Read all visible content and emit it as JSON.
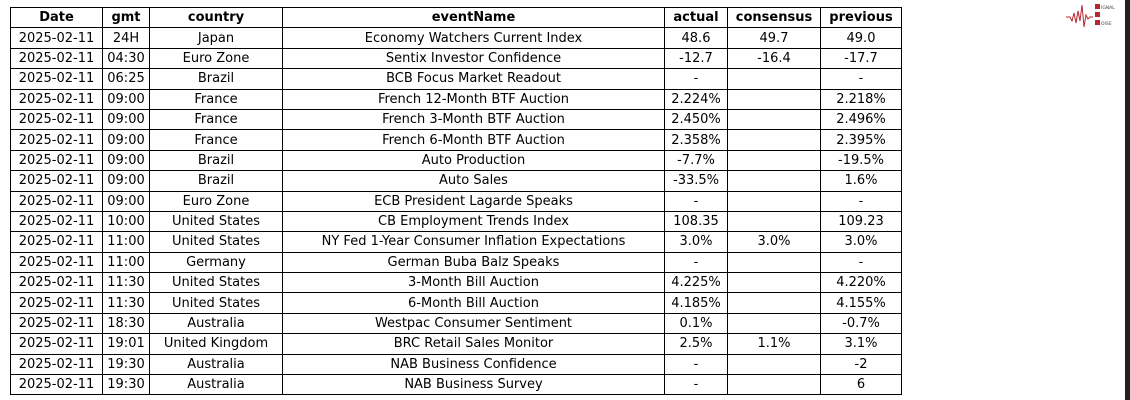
{
  "logo": {
    "text": "SIGNAL 2 NOISE",
    "color": "#b5282e"
  },
  "table": {
    "columns": [
      "Date",
      "gmt",
      "country",
      "eventName",
      "actual",
      "consensus",
      "previous"
    ],
    "rows": [
      [
        "2025-02-11",
        "24H",
        "Japan",
        "Economy Watchers Current Index",
        "48.6",
        "49.7",
        "49.0"
      ],
      [
        "2025-02-11",
        "04:30",
        "Euro Zone",
        "Sentix Investor Confidence",
        "-12.7",
        "-16.4",
        "-17.7"
      ],
      [
        "2025-02-11",
        "06:25",
        "Brazil",
        "BCB Focus Market Readout",
        "-",
        "",
        "-"
      ],
      [
        "2025-02-11",
        "09:00",
        "France",
        "French 12-Month BTF Auction",
        "2.224%",
        "",
        "2.218%"
      ],
      [
        "2025-02-11",
        "09:00",
        "France",
        "French 3-Month BTF Auction",
        "2.450%",
        "",
        "2.496%"
      ],
      [
        "2025-02-11",
        "09:00",
        "France",
        "French 6-Month BTF Auction",
        "2.358%",
        "",
        "2.395%"
      ],
      [
        "2025-02-11",
        "09:00",
        "Brazil",
        "Auto Production",
        "-7.7%",
        "",
        "-19.5%"
      ],
      [
        "2025-02-11",
        "09:00",
        "Brazil",
        "Auto Sales",
        "-33.5%",
        "",
        "1.6%"
      ],
      [
        "2025-02-11",
        "09:00",
        "Euro Zone",
        "ECB President Lagarde Speaks",
        "-",
        "",
        "-"
      ],
      [
        "2025-02-11",
        "10:00",
        "United States",
        "CB Employment Trends Index",
        "108.35",
        "",
        "109.23"
      ],
      [
        "2025-02-11",
        "11:00",
        "United States",
        "NY Fed 1-Year Consumer Inflation Expectations",
        "3.0%",
        "3.0%",
        "3.0%"
      ],
      [
        "2025-02-11",
        "11:00",
        "Germany",
        "German Buba Balz Speaks",
        "-",
        "",
        "-"
      ],
      [
        "2025-02-11",
        "11:30",
        "United States",
        "3-Month Bill Auction",
        "4.225%",
        "",
        "4.220%"
      ],
      [
        "2025-02-11",
        "11:30",
        "United States",
        "6-Month Bill Auction",
        "4.185%",
        "",
        "4.155%"
      ],
      [
        "2025-02-11",
        "18:30",
        "Australia",
        "Westpac Consumer Sentiment",
        "0.1%",
        "",
        "-0.7%"
      ],
      [
        "2025-02-11",
        "19:01",
        "United Kingdom",
        "BRC Retail Sales Monitor",
        "2.5%",
        "1.1%",
        "3.1%"
      ],
      [
        "2025-02-11",
        "19:30",
        "Australia",
        "NAB Business Confidence",
        "-",
        "",
        "-2"
      ],
      [
        "2025-02-11",
        "19:30",
        "Australia",
        "NAB Business Survey",
        "-",
        "",
        "6"
      ]
    ]
  }
}
